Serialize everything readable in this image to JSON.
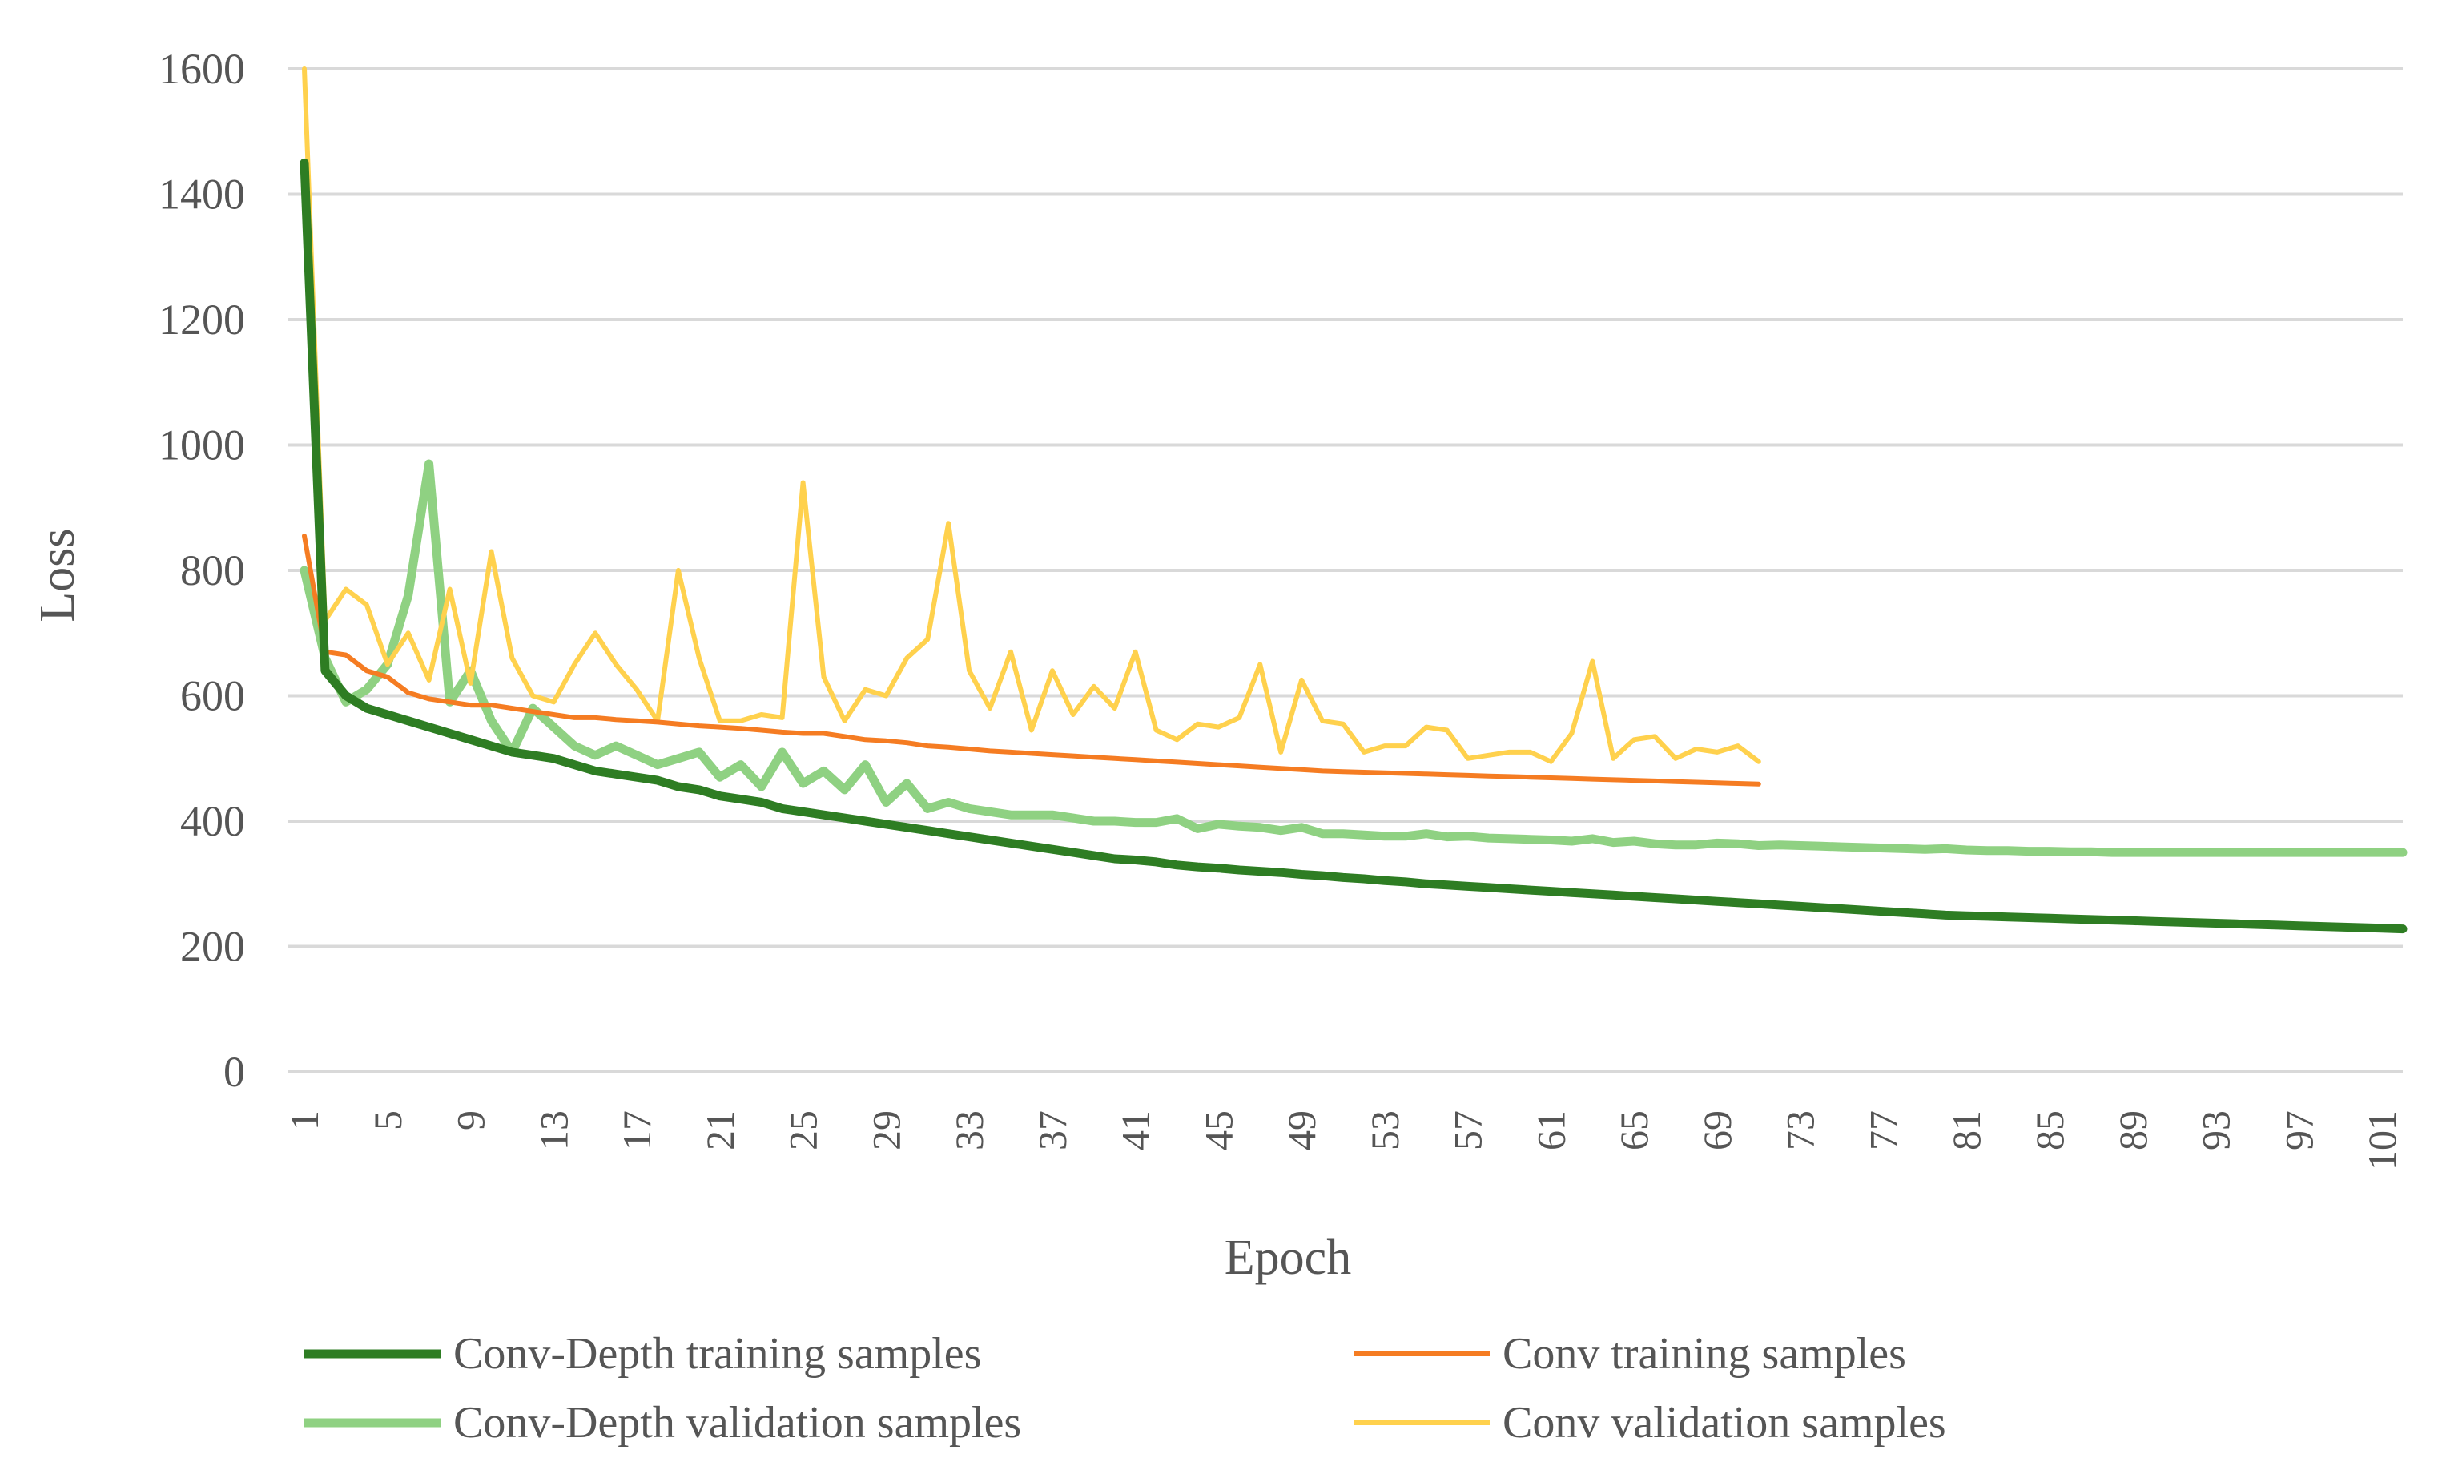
{
  "chart_data": {
    "type": "line",
    "title": "",
    "xlabel": "Epoch",
    "ylabel": "Loss",
    "ylim": [
      0,
      1600
    ],
    "yticks": [
      "0",
      "200",
      "400",
      "600",
      "800",
      "1000",
      "1200",
      "1400",
      "1600"
    ],
    "xticks": [
      "1",
      "5",
      "9",
      "13",
      "17",
      "21",
      "25",
      "29",
      "33",
      "37",
      "41",
      "45",
      "49",
      "53",
      "57",
      "61",
      "65",
      "69",
      "73",
      "77",
      "81",
      "85",
      "89",
      "93",
      "97",
      "101"
    ],
    "grid": true,
    "legend_position": "bottom",
    "x_max": 102,
    "series": [
      {
        "name": "Conv-Depth training samples",
        "color": "#2e7d23",
        "values": [
          1450,
          640,
          600,
          580,
          570,
          560,
          550,
          540,
          530,
          520,
          510,
          505,
          500,
          490,
          480,
          475,
          470,
          465,
          455,
          450,
          440,
          435,
          430,
          420,
          415,
          410,
          405,
          400,
          395,
          390,
          385,
          380,
          375,
          370,
          365,
          360,
          355,
          350,
          345,
          340,
          338,
          335,
          330,
          327,
          325,
          322,
          320,
          318,
          315,
          313,
          310,
          308,
          305,
          303,
          300,
          298,
          296,
          294,
          292,
          290,
          288,
          286,
          284,
          282,
          280,
          278,
          276,
          274,
          272,
          270,
          268,
          266,
          264,
          262,
          260,
          258,
          256,
          254,
          252,
          250,
          249,
          248,
          247,
          246,
          245,
          244,
          243,
          242,
          241,
          240,
          239,
          238,
          237,
          236,
          235,
          234,
          233,
          232,
          231,
          230,
          229,
          228
        ]
      },
      {
        "name": "Conv training samples",
        "color": "#f57c22",
        "values": [
          855,
          670,
          665,
          640,
          630,
          605,
          595,
          590,
          585,
          585,
          580,
          575,
          570,
          565,
          565,
          562,
          560,
          558,
          555,
          552,
          550,
          548,
          545,
          542,
          540,
          540,
          535,
          530,
          528,
          525,
          520,
          518,
          515,
          512,
          510,
          508,
          506,
          504,
          502,
          500,
          498,
          496,
          494,
          492,
          490,
          488,
          486,
          484,
          482,
          480,
          479,
          478,
          477,
          476,
          475,
          474,
          473,
          472,
          471,
          470,
          469,
          468,
          467,
          466,
          465,
          464,
          463,
          462,
          461,
          460,
          459
        ]
      },
      {
        "name": "Conv-Depth validation samples",
        "color": "#8fd182",
        "values": [
          800,
          660,
          590,
          610,
          650,
          760,
          970,
          590,
          640,
          560,
          510,
          580,
          550,
          520,
          505,
          520,
          505,
          490,
          500,
          510,
          470,
          490,
          455,
          510,
          460,
          480,
          450,
          490,
          430,
          460,
          420,
          430,
          420,
          415,
          410,
          410,
          410,
          405,
          400,
          400,
          398,
          398,
          404,
          388,
          395,
          392,
          390,
          385,
          390,
          380,
          380,
          378,
          376,
          376,
          380,
          375,
          376,
          373,
          372,
          371,
          370,
          368,
          372,
          366,
          368,
          364,
          362,
          362,
          365,
          364,
          361,
          362,
          361,
          360,
          359,
          358,
          357,
          356,
          355,
          356,
          354,
          353,
          353,
          352,
          352,
          351,
          351,
          350,
          350,
          350,
          350,
          350,
          350,
          350,
          350,
          350,
          350,
          350,
          350,
          350,
          350,
          350
        ]
      },
      {
        "name": "Conv validation samples",
        "color": "#ffd14d",
        "values": [
          1600,
          720,
          770,
          745,
          650,
          700,
          625,
          770,
          620,
          830,
          660,
          600,
          590,
          650,
          700,
          650,
          610,
          560,
          800,
          660,
          560,
          560,
          570,
          565,
          940,
          630,
          560,
          610,
          600,
          660,
          690,
          875,
          640,
          580,
          670,
          545,
          640,
          570,
          615,
          580,
          670,
          545,
          530,
          555,
          550,
          565,
          650,
          510,
          625,
          560,
          555,
          510,
          520,
          520,
          550,
          545,
          500,
          505,
          510,
          510,
          495,
          540,
          655,
          500,
          530,
          535,
          500,
          515,
          510,
          520,
          495
        ]
      }
    ]
  }
}
